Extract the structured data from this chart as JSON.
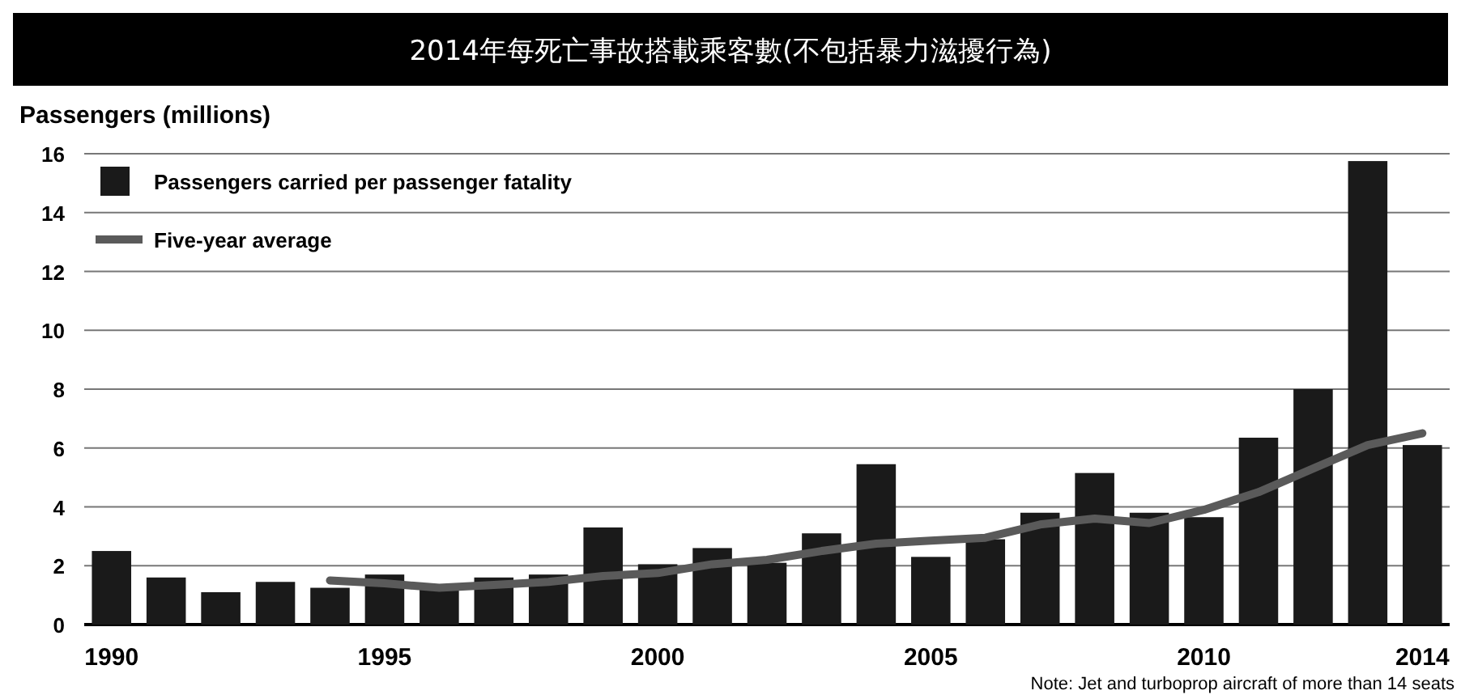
{
  "chart_data": {
    "type": "bar",
    "title": "2014年每死亡事故搭載乘客數(不包括暴力滋擾行為)",
    "ylabel": "Passengers (millions)",
    "x": [
      1990,
      1991,
      1992,
      1993,
      1994,
      1995,
      1996,
      1997,
      1998,
      1999,
      2000,
      2001,
      2002,
      2003,
      2004,
      2005,
      2006,
      2007,
      2008,
      2009,
      2010,
      2011,
      2012,
      2013,
      2014
    ],
    "series": [
      {
        "name": "Passengers carried per passenger fatality",
        "color": "#1a1a1a",
        "values": [
          2.5,
          1.6,
          1.1,
          1.45,
          1.25,
          1.7,
          1.2,
          1.6,
          1.7,
          3.3,
          2.05,
          2.6,
          2.1,
          3.1,
          5.45,
          2.3,
          2.9,
          3.8,
          5.15,
          3.8,
          3.65,
          6.35,
          8.0,
          15.75,
          6.1
        ]
      },
      {
        "name": "Five-year average",
        "type": "line",
        "color": "#5a5a5a",
        "x": [
          1994,
          1995,
          1996,
          1997,
          1998,
          1999,
          2000,
          2001,
          2002,
          2003,
          2004,
          2005,
          2006,
          2007,
          2008,
          2009,
          2010,
          2011,
          2012,
          2013,
          2014
        ],
        "values": [
          1.5,
          1.4,
          1.25,
          1.35,
          1.45,
          1.65,
          1.75,
          2.05,
          2.2,
          2.5,
          2.75,
          2.85,
          2.95,
          3.4,
          3.6,
          3.45,
          3.9,
          4.5,
          5.3,
          6.1,
          6.5
        ]
      }
    ],
    "xlim": [
      1989.5,
      2014.5
    ],
    "xticks": [
      1990,
      1995,
      2000,
      2005,
      2010,
      2014
    ],
    "ylim": [
      0,
      16
    ],
    "yticks": [
      0,
      2,
      4,
      6,
      8,
      10,
      12,
      14,
      16
    ],
    "grid": "y",
    "legend": "top left",
    "annotations": [
      "Note: Jet and turboprop aircraft of more than 14 seats"
    ]
  }
}
